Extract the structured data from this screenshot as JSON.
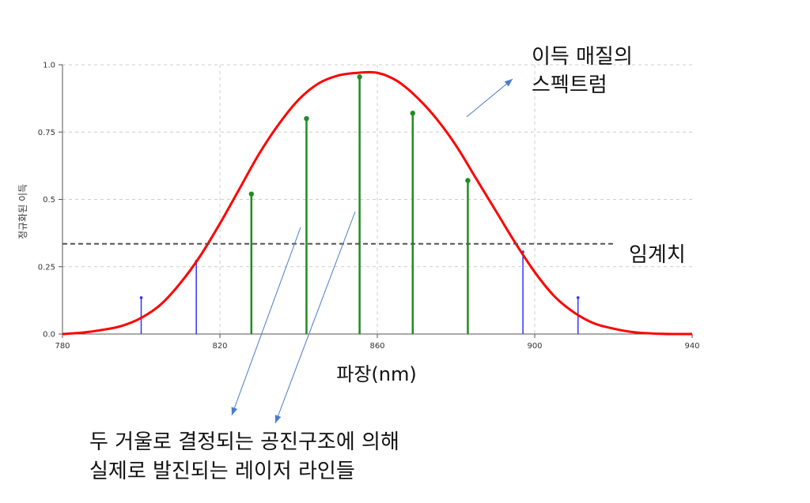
{
  "chart_data": {
    "type": "line",
    "xlabel": "파장(nm)",
    "ylabel": "정규화된 이득",
    "xlim": [
      780,
      940
    ],
    "ylim": [
      0,
      1.0
    ],
    "x_ticks": [
      780,
      820,
      860,
      900,
      940
    ],
    "y_ticks": [
      0.0,
      0.25,
      0.5,
      0.75,
      1.0
    ],
    "x_tick_labels": [
      "780",
      "820",
      "860",
      "900",
      "940"
    ],
    "y_tick_labels": [
      "0.0",
      "0.25",
      "0.5",
      "0.75",
      "1.0"
    ],
    "grid": true,
    "gain_curve": {
      "color": "#ff0000",
      "x": [
        780,
        785,
        790,
        795,
        800,
        805,
        810,
        815,
        820,
        825,
        830,
        835,
        840,
        845,
        850,
        855,
        860,
        865,
        870,
        875,
        880,
        885,
        890,
        895,
        900,
        905,
        910,
        915,
        920,
        925,
        930,
        935,
        940
      ],
      "y": [
        0.0,
        0.005,
        0.015,
        0.03,
        0.06,
        0.11,
        0.19,
        0.29,
        0.41,
        0.54,
        0.67,
        0.78,
        0.87,
        0.93,
        0.96,
        0.97,
        0.97,
        0.94,
        0.88,
        0.8,
        0.7,
        0.58,
        0.46,
        0.34,
        0.23,
        0.14,
        0.08,
        0.04,
        0.02,
        0.007,
        0.002,
        0.0,
        0.0
      ]
    },
    "threshold": {
      "y": 0.335,
      "color": "#555555"
    },
    "modes_below": {
      "color": "#3333ff",
      "x": [
        800,
        814,
        897,
        911
      ],
      "y": [
        0.135,
        0.27,
        0.305,
        0.135
      ]
    },
    "modes_above": {
      "color": "#228b22",
      "x": [
        828,
        842,
        855.5,
        869,
        883
      ],
      "y": [
        0.52,
        0.8,
        0.955,
        0.82,
        0.57
      ]
    },
    "annotations": {
      "spectrum_line1": "이득 매질의",
      "spectrum_line2": "스펙트럼",
      "threshold": "임계치",
      "modes_line1": "두 거울로 결정되는 공진구조에 의해",
      "modes_line2": "실제로 발진되는 레이저 라인들"
    },
    "arrow_color": "#4a7cc9"
  }
}
